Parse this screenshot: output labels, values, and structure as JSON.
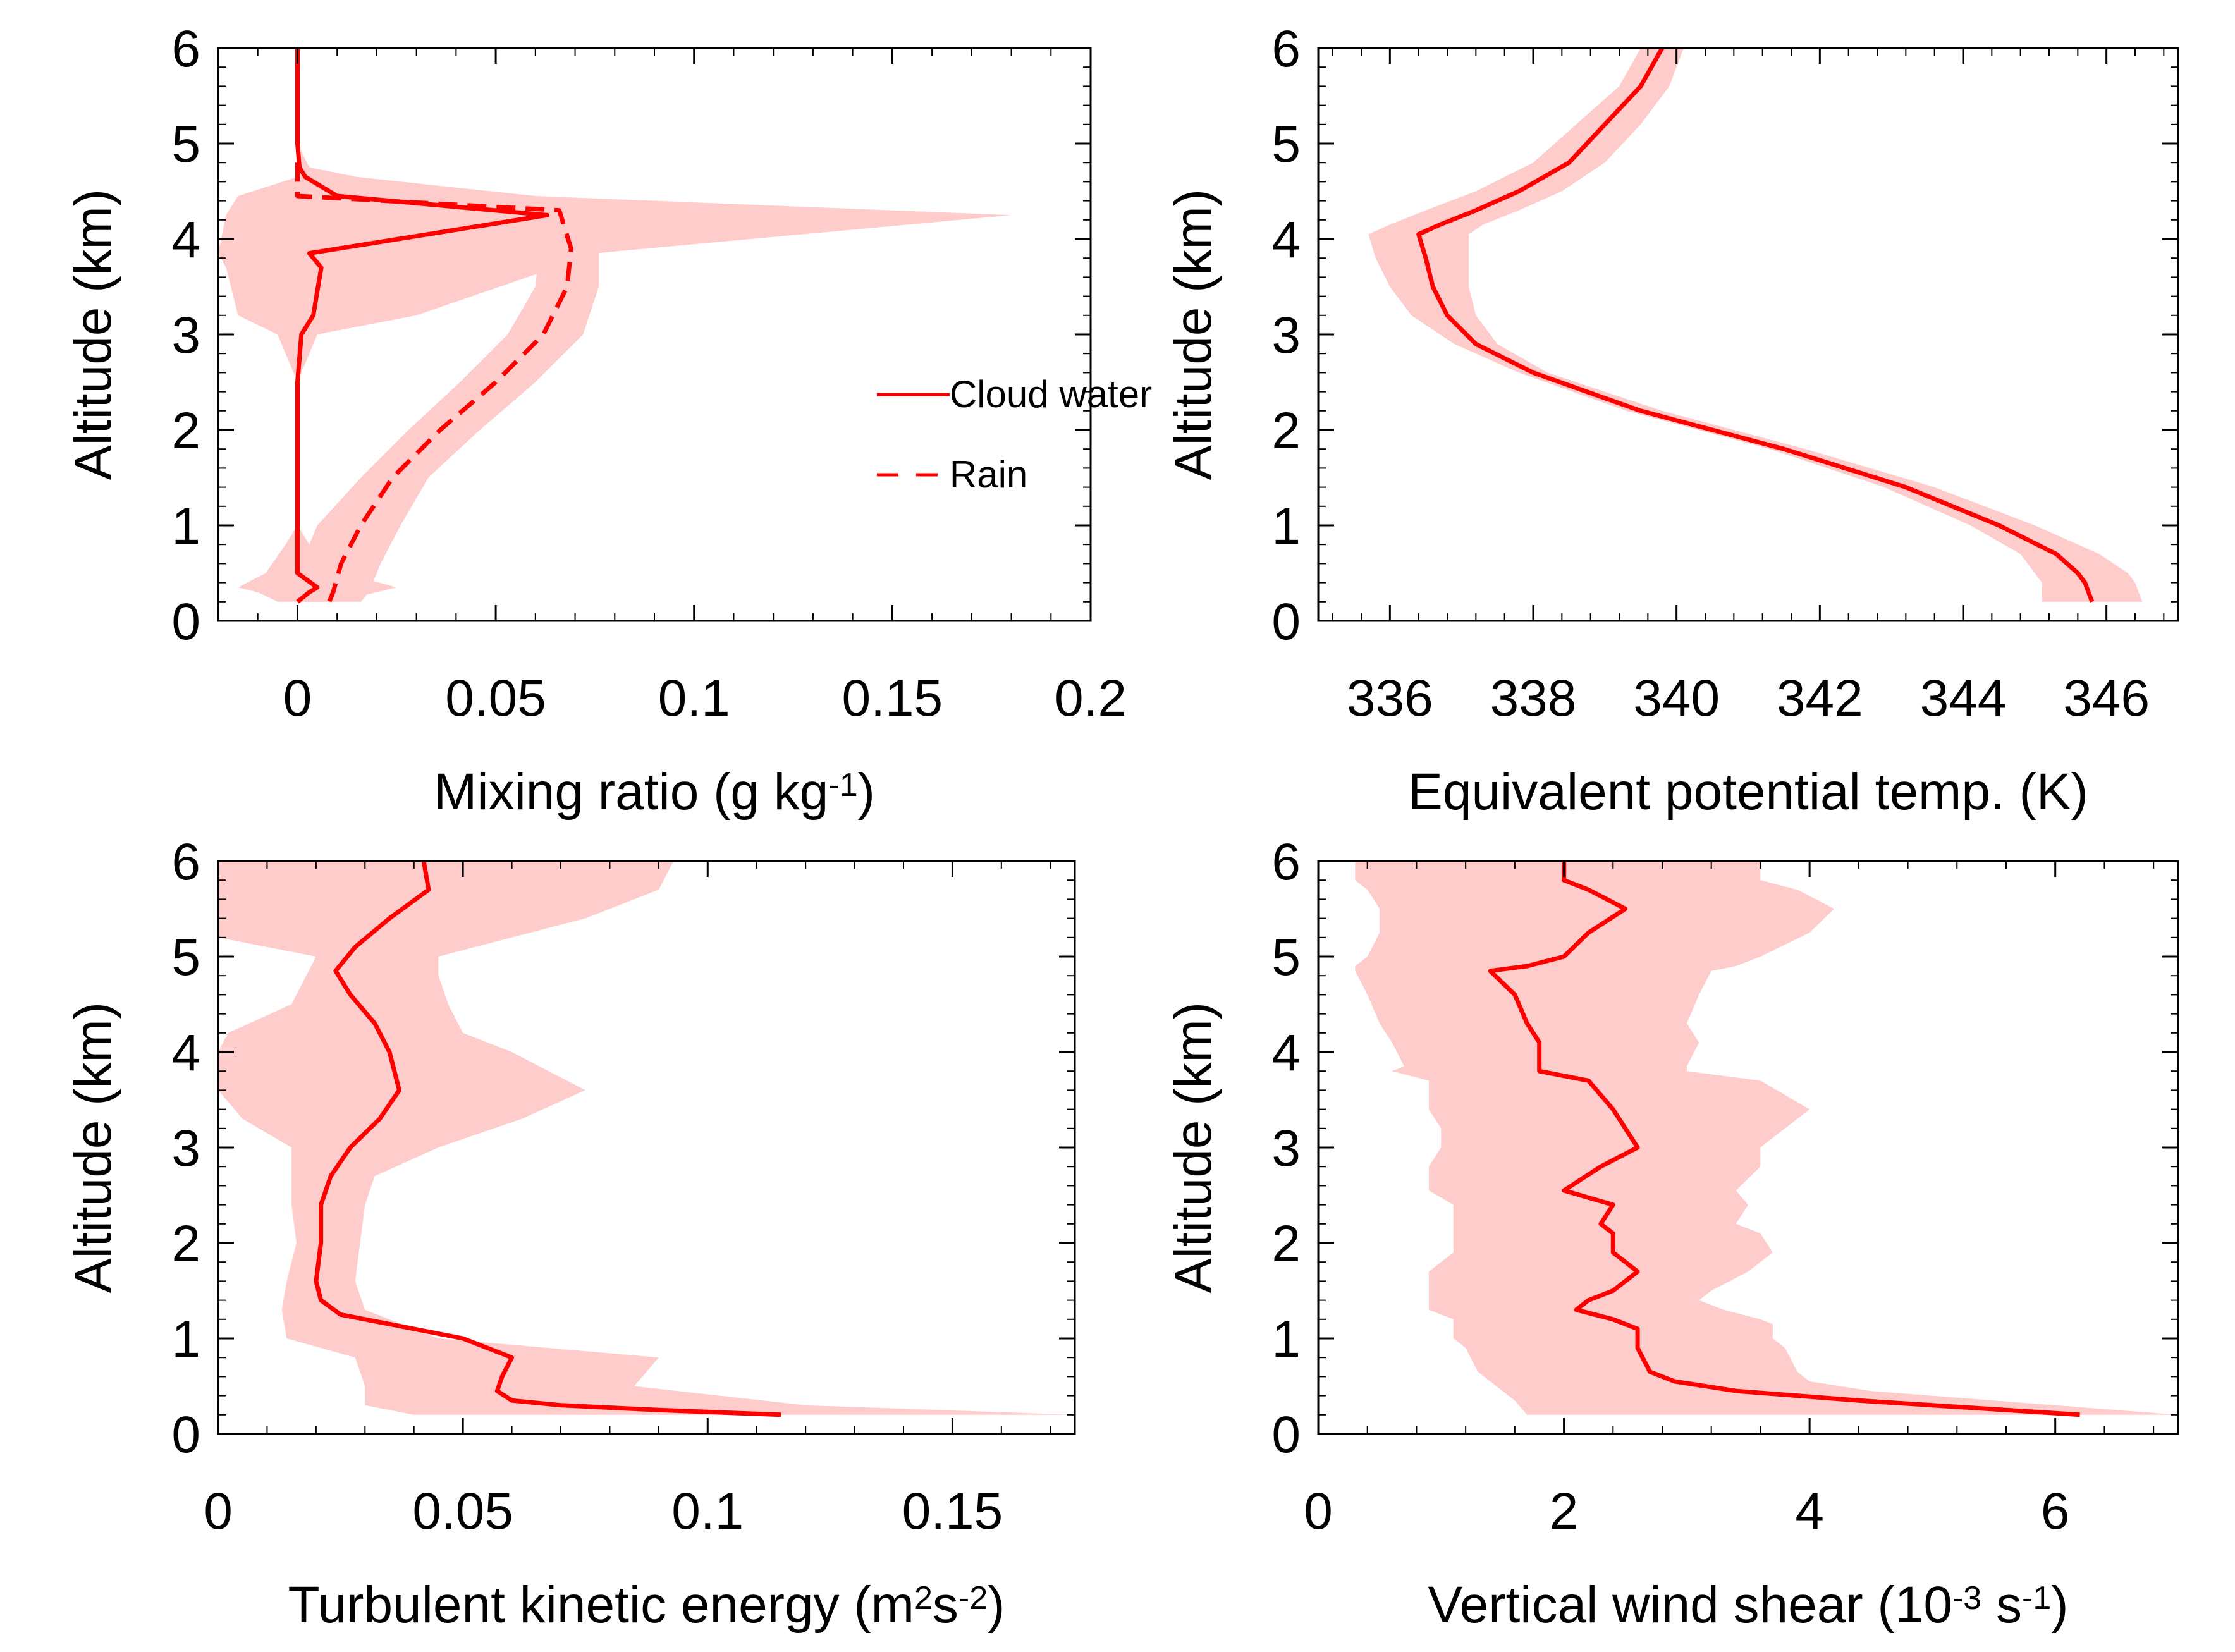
{
  "figure": {
    "line_color": "#ff0000",
    "band_color": "#ffcccc",
    "axis_color": "#000000"
  },
  "chart_data": [
    {
      "id": "mixing",
      "type": "line",
      "xlabel": {
        "main": "Mixing ratio (g kg",
        "sup": "-1",
        "tail": ")"
      },
      "ylabel": "Altitude (km)",
      "xlim": [
        -0.02,
        0.2
      ],
      "ylim": [
        0,
        6
      ],
      "xticks": [
        0,
        0.05,
        0.1,
        0.15,
        0.2
      ],
      "xtick_labels": [
        "0",
        "0.05",
        "0.1",
        "0.15",
        "0.2"
      ],
      "xminor": 0.01,
      "yticks": [
        0,
        1,
        2,
        3,
        4,
        5,
        6
      ],
      "ytick_labels": [
        "0",
        "1",
        "2",
        "3",
        "4",
        "5",
        "6"
      ],
      "yminor": 0.2,
      "legend": [
        "Cloud water",
        "Rain"
      ],
      "series": [
        {
          "name": "Cloud water",
          "style": "solid",
          "x": [
            0.0,
            0.0,
            0.0005,
            0.002,
            0.01,
            0.063,
            0.003,
            0.006,
            0.004,
            0.001,
            0.0,
            0.0,
            0.0,
            0.0,
            0.0,
            0.0,
            0.005,
            0.003,
            0.0
          ],
          "y": [
            6.0,
            5.0,
            4.75,
            4.65,
            4.45,
            4.25,
            3.85,
            3.7,
            3.2,
            3.0,
            2.5,
            2.0,
            1.5,
            1.0,
            0.8,
            0.5,
            0.35,
            0.3,
            0.2
          ],
          "lower": [
            0.0,
            0.0,
            0.0,
            0.0,
            -0.015,
            -0.018,
            -0.02,
            -0.018,
            -0.015,
            -0.005,
            0.0,
            0.0,
            0.0,
            0.0,
            -0.003,
            -0.008,
            -0.015,
            -0.01,
            -0.005
          ],
          "upper": [
            0.0,
            0.0,
            0.003,
            0.015,
            0.06,
            0.18,
            0.075,
            0.065,
            0.03,
            0.005,
            0.0,
            0.0,
            0.0,
            0.0,
            0.003,
            0.012,
            0.025,
            0.02,
            0.01
          ]
        },
        {
          "name": "Rain",
          "style": "dashed",
          "x": [
            0.0,
            0.0,
            0.066,
            0.069,
            0.068,
            0.062,
            0.05,
            0.036,
            0.024,
            0.016,
            0.011,
            0.009,
            0.008
          ],
          "y": [
            4.8,
            4.45,
            4.3,
            3.9,
            3.5,
            3.0,
            2.5,
            2.0,
            1.5,
            1.0,
            0.6,
            0.3,
            0.2
          ],
          "lower": [
            0.0,
            0.0,
            0.055,
            0.061,
            0.06,
            0.053,
            0.041,
            0.028,
            0.016,
            0.005,
            0.001,
            0.0,
            0.0
          ],
          "upper": [
            0.0,
            0.003,
            0.075,
            0.076,
            0.076,
            0.072,
            0.06,
            0.046,
            0.033,
            0.026,
            0.021,
            0.018,
            0.016
          ]
        }
      ]
    },
    {
      "id": "theta_e",
      "type": "line",
      "xlabel": {
        "main": "Equivalent potential temp. (K)",
        "sup": "",
        "tail": ""
      },
      "ylabel": "Altitude (km)",
      "xlim": [
        335,
        347
      ],
      "ylim": [
        0,
        6
      ],
      "xticks": [
        336,
        338,
        340,
        342,
        344,
        346
      ],
      "xtick_labels": [
        "336",
        "338",
        "340",
        "342",
        "344",
        "346"
      ],
      "xminor": 0.4,
      "yticks": [
        0,
        1,
        2,
        3,
        4,
        5,
        6
      ],
      "ytick_labels": [
        "0",
        "1",
        "2",
        "3",
        "4",
        "5",
        "6"
      ],
      "yminor": 0.2,
      "legend": [],
      "series": [
        {
          "name": "Equivalent potential temperature",
          "style": "solid",
          "x": [
            339.8,
            339.5,
            339.0,
            338.5,
            337.8,
            337.2,
            336.7,
            336.4,
            336.5,
            336.6,
            336.8,
            337.2,
            338.0,
            339.5,
            341.5,
            343.2,
            344.5,
            345.3,
            345.6,
            345.7,
            345.8
          ],
          "y": [
            6.0,
            5.6,
            5.2,
            4.8,
            4.5,
            4.3,
            4.15,
            4.05,
            3.8,
            3.5,
            3.2,
            2.9,
            2.6,
            2.2,
            1.8,
            1.4,
            1.0,
            0.7,
            0.5,
            0.4,
            0.2
          ],
          "lower": [
            339.5,
            339.2,
            338.6,
            338.0,
            337.2,
            336.5,
            336.0,
            335.7,
            335.8,
            336.0,
            336.3,
            336.9,
            337.8,
            339.3,
            341.3,
            342.9,
            344.1,
            344.8,
            345.0,
            345.1,
            345.1
          ],
          "upper": [
            340.1,
            339.9,
            339.5,
            339.0,
            338.4,
            337.8,
            337.3,
            337.1,
            337.1,
            337.1,
            337.2,
            337.5,
            338.2,
            339.8,
            341.8,
            343.6,
            345.0,
            345.9,
            346.3,
            346.4,
            346.5
          ]
        }
      ]
    },
    {
      "id": "tke",
      "type": "line",
      "xlabel": {
        "main": "Turbulent kinetic energy (m",
        "sup": "2",
        "mid": "s",
        "sup2": "-2",
        "tail": ")"
      },
      "ylabel": "Altitude (km)",
      "xlim": [
        0,
        0.175
      ],
      "ylim": [
        0,
        6
      ],
      "xticks": [
        0,
        0.05,
        0.1,
        0.15
      ],
      "xtick_labels": [
        "0",
        "0.05",
        "0.1",
        "0.15"
      ],
      "xminor": 0.01,
      "yticks": [
        0,
        1,
        2,
        3,
        4,
        5,
        6
      ],
      "ytick_labels": [
        "0",
        "1",
        "2",
        "3",
        "4",
        "5",
        "6"
      ],
      "yminor": 0.2,
      "legend": [],
      "series": [
        {
          "name": "Turbulent kinetic energy",
          "style": "solid",
          "x": [
            0.042,
            0.043,
            0.035,
            0.028,
            0.024,
            0.027,
            0.032,
            0.035,
            0.037,
            0.033,
            0.027,
            0.023,
            0.021,
            0.021,
            0.02,
            0.021,
            0.025,
            0.035,
            0.05,
            0.06,
            0.058,
            0.057,
            0.06,
            0.07,
            0.09,
            0.115
          ],
          "y": [
            6.0,
            5.7,
            5.4,
            5.1,
            4.85,
            4.6,
            4.3,
            4.0,
            3.6,
            3.3,
            3.0,
            2.7,
            2.4,
            2.0,
            1.6,
            1.4,
            1.25,
            1.15,
            1.0,
            0.8,
            0.6,
            0.45,
            0.35,
            0.3,
            0.25,
            0.2
          ]
        }
      ],
      "band": {
        "y": [
          6.0,
          5.7,
          5.4,
          5.2,
          5.0,
          4.8,
          4.5,
          4.2,
          4.0,
          3.6,
          3.3,
          3.0,
          2.7,
          2.4,
          2.0,
          1.6,
          1.3,
          1.0,
          0.8,
          0.5,
          0.3,
          0.2
        ],
        "lower": [
          0.0,
          0.0,
          0.0,
          0.0,
          0.02,
          0.018,
          0.015,
          0.002,
          0.0,
          0.0,
          0.005,
          0.015,
          0.015,
          0.015,
          0.016,
          0.014,
          0.013,
          0.014,
          0.028,
          0.03,
          0.03,
          0.04
        ],
        "upper": [
          0.093,
          0.09,
          0.075,
          0.06,
          0.045,
          0.045,
          0.047,
          0.05,
          0.06,
          0.075,
          0.062,
          0.045,
          0.032,
          0.03,
          0.029,
          0.028,
          0.03,
          0.045,
          0.09,
          0.085,
          0.12,
          0.175
        ]
      }
    },
    {
      "id": "shear",
      "type": "line",
      "xlabel": {
        "main": "Vertical wind shear (10",
        "sup": "-3",
        "mid": " s",
        "sup2": "-1",
        "tail": ")"
      },
      "ylabel": "Altitude (km)",
      "xlim": [
        0,
        7
      ],
      "ylim": [
        0,
        6
      ],
      "xticks": [
        0,
        2,
        4,
        6
      ],
      "xtick_labels": [
        "0",
        "2",
        "4",
        "6"
      ],
      "xminor": 0.4,
      "yticks": [
        0,
        1,
        2,
        3,
        4,
        5,
        6
      ],
      "ytick_labels": [
        "0",
        "1",
        "2",
        "3",
        "4",
        "5",
        "6"
      ],
      "yminor": 0.2,
      "legend": [],
      "series": [
        {
          "name": "Vertical wind shear",
          "style": "solid",
          "x": [
            2.0,
            2.0,
            2.2,
            2.5,
            2.2,
            2.0,
            1.7,
            1.4,
            1.6,
            1.7,
            1.8,
            1.8,
            1.8,
            2.2,
            2.4,
            2.5,
            2.6,
            2.3,
            2.0,
            2.4,
            2.3,
            2.4,
            2.4,
            2.6,
            2.4,
            2.2,
            2.1,
            2.4,
            2.5,
            2.6,
            2.6,
            2.6,
            2.7,
            2.9,
            3.4,
            4.4,
            6.2
          ],
          "y": [
            6.0,
            5.8,
            5.7,
            5.5,
            5.25,
            5.0,
            4.9,
            4.85,
            4.6,
            4.3,
            4.1,
            3.85,
            3.8,
            3.7,
            3.4,
            3.2,
            3.0,
            2.8,
            2.55,
            2.4,
            2.2,
            2.1,
            1.9,
            1.7,
            1.5,
            1.4,
            1.3,
            1.2,
            1.15,
            1.1,
            1.0,
            0.9,
            0.65,
            0.55,
            0.45,
            0.35,
            0.2
          ],
          "lower": [
            0.3,
            0.3,
            0.4,
            0.5,
            0.5,
            0.4,
            0.3,
            0.3,
            0.4,
            0.5,
            0.6,
            0.7,
            0.6,
            0.9,
            0.9,
            1.0,
            1.0,
            0.9,
            0.9,
            1.1,
            1.1,
            1.1,
            1.1,
            0.9,
            0.9,
            0.9,
            0.9,
            1.1,
            1.1,
            1.1,
            1.1,
            1.2,
            1.3,
            1.4,
            1.5,
            1.6,
            1.7
          ],
          "upper": [
            3.6,
            3.6,
            3.9,
            4.2,
            4.0,
            3.6,
            3.4,
            3.2,
            3.1,
            3.0,
            3.1,
            3.0,
            3.0,
            3.6,
            4.0,
            3.8,
            3.6,
            3.6,
            3.4,
            3.5,
            3.4,
            3.6,
            3.7,
            3.5,
            3.2,
            3.1,
            3.3,
            3.6,
            3.7,
            3.7,
            3.7,
            3.8,
            3.9,
            4.0,
            4.5,
            5.5,
            7.0
          ]
        }
      ]
    }
  ]
}
